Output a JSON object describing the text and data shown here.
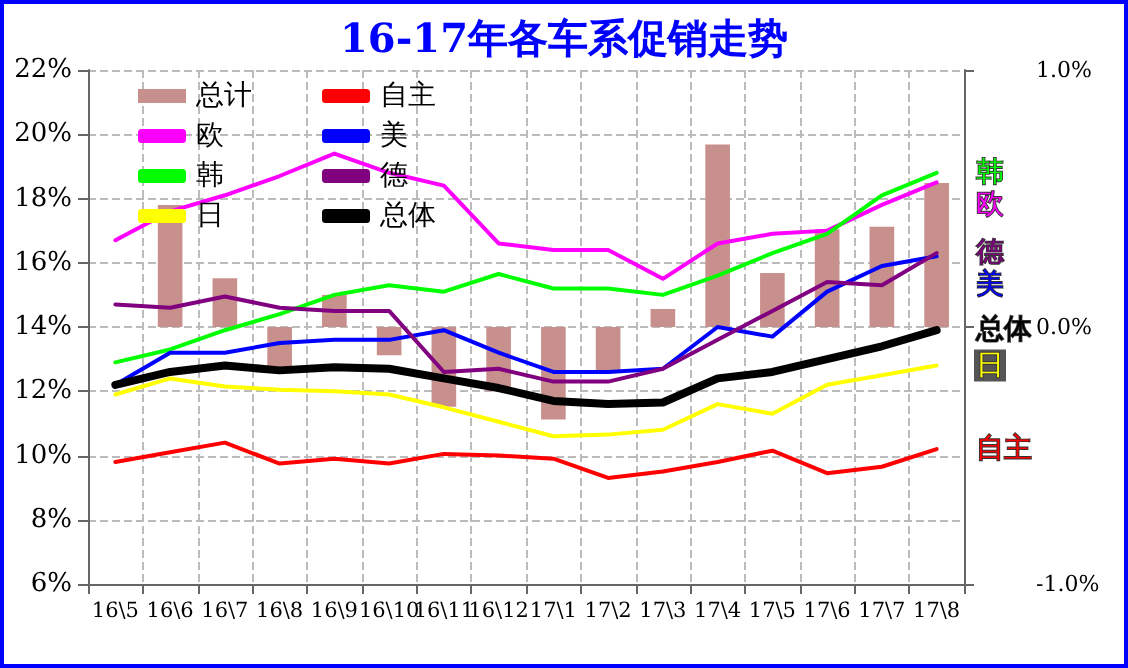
{
  "chart_data": {
    "type": "line",
    "title": "16-17年各车系促销走势",
    "categories": [
      "16\\5",
      "16\\6",
      "16\\7",
      "16\\8",
      "16\\9",
      "16\\10",
      "16\\11",
      "16\\12",
      "17\\1",
      "17\\2",
      "17\\3",
      "17\\4",
      "17\\5",
      "17\\6",
      "17\\7",
      "17\\8"
    ],
    "series": [
      {
        "name": "总计",
        "type": "bar",
        "axis": "y2",
        "color": "#c8908c",
        "values": [
          null,
          0.475,
          0.19,
          -0.16,
          0.125,
          -0.11,
          -0.31,
          -0.25,
          -0.36,
          -0.17,
          0.07,
          0.71,
          0.21,
          0.38,
          0.39,
          0.56
        ]
      },
      {
        "name": "欧",
        "color": "#ff00ff",
        "values": [
          16.7,
          17.6,
          18.1,
          18.7,
          19.4,
          18.8,
          18.4,
          16.6,
          16.4,
          16.4,
          15.5,
          16.6,
          16.9,
          17.0,
          17.8,
          18.5
        ]
      },
      {
        "name": "韩",
        "color": "#00ff00",
        "values": [
          12.9,
          13.3,
          13.9,
          14.4,
          15.0,
          15.3,
          15.1,
          15.65,
          15.2,
          15.2,
          15.0,
          15.6,
          16.3,
          16.9,
          18.1,
          18.8
        ]
      },
      {
        "name": "日",
        "color": "#ffff00",
        "values": [
          11.9,
          12.4,
          12.15,
          12.05,
          12.0,
          11.9,
          11.5,
          11.05,
          10.6,
          10.65,
          10.8,
          11.6,
          11.3,
          12.2,
          12.5,
          12.8
        ]
      },
      {
        "name": "自主",
        "color": "#ff0000",
        "values": [
          9.8,
          10.1,
          10.4,
          9.75,
          9.9,
          9.75,
          10.05,
          10.0,
          9.9,
          9.3,
          9.5,
          9.8,
          10.15,
          9.45,
          9.65,
          10.2
        ]
      },
      {
        "name": "美",
        "color": "#0000ff",
        "values": [
          12.2,
          13.2,
          13.2,
          13.5,
          13.6,
          13.6,
          13.9,
          13.2,
          12.6,
          12.6,
          12.7,
          14.0,
          13.7,
          15.1,
          15.9,
          16.2
        ]
      },
      {
        "name": "德",
        "color": "#800080",
        "values": [
          14.7,
          14.6,
          14.95,
          14.6,
          14.5,
          14.5,
          12.6,
          12.7,
          12.3,
          12.3,
          12.7,
          13.6,
          14.5,
          15.4,
          15.3,
          16.3
        ]
      },
      {
        "name": "总体",
        "color": "#000000",
        "values": [
          12.2,
          12.6,
          12.8,
          12.65,
          12.75,
          12.7,
          12.4,
          12.1,
          11.7,
          11.6,
          11.65,
          12.4,
          12.6,
          13.0,
          13.4,
          13.9
        ]
      }
    ],
    "ylim": [
      6,
      22
    ],
    "yticks": [
      {
        "value": 6,
        "label": "6%"
      },
      {
        "value": 8,
        "label": "8%"
      },
      {
        "value": 10,
        "label": "10%"
      },
      {
        "value": 12,
        "label": "12%"
      },
      {
        "value": 14,
        "label": "14%"
      },
      {
        "value": 16,
        "label": "16%"
      },
      {
        "value": 18,
        "label": "18%"
      },
      {
        "value": 20,
        "label": "20%"
      },
      {
        "value": 22,
        "label": "22%"
      }
    ],
    "y2lim": [
      -1,
      1
    ],
    "y2ticks": [
      {
        "value": -1,
        "label": "-1.0%"
      },
      {
        "value": 0,
        "label": "0.0%"
      },
      {
        "value": 1,
        "label": "1.0%"
      }
    ],
    "grid": true,
    "legend": "top left",
    "marker": "none",
    "line_style": "solid"
  }
}
